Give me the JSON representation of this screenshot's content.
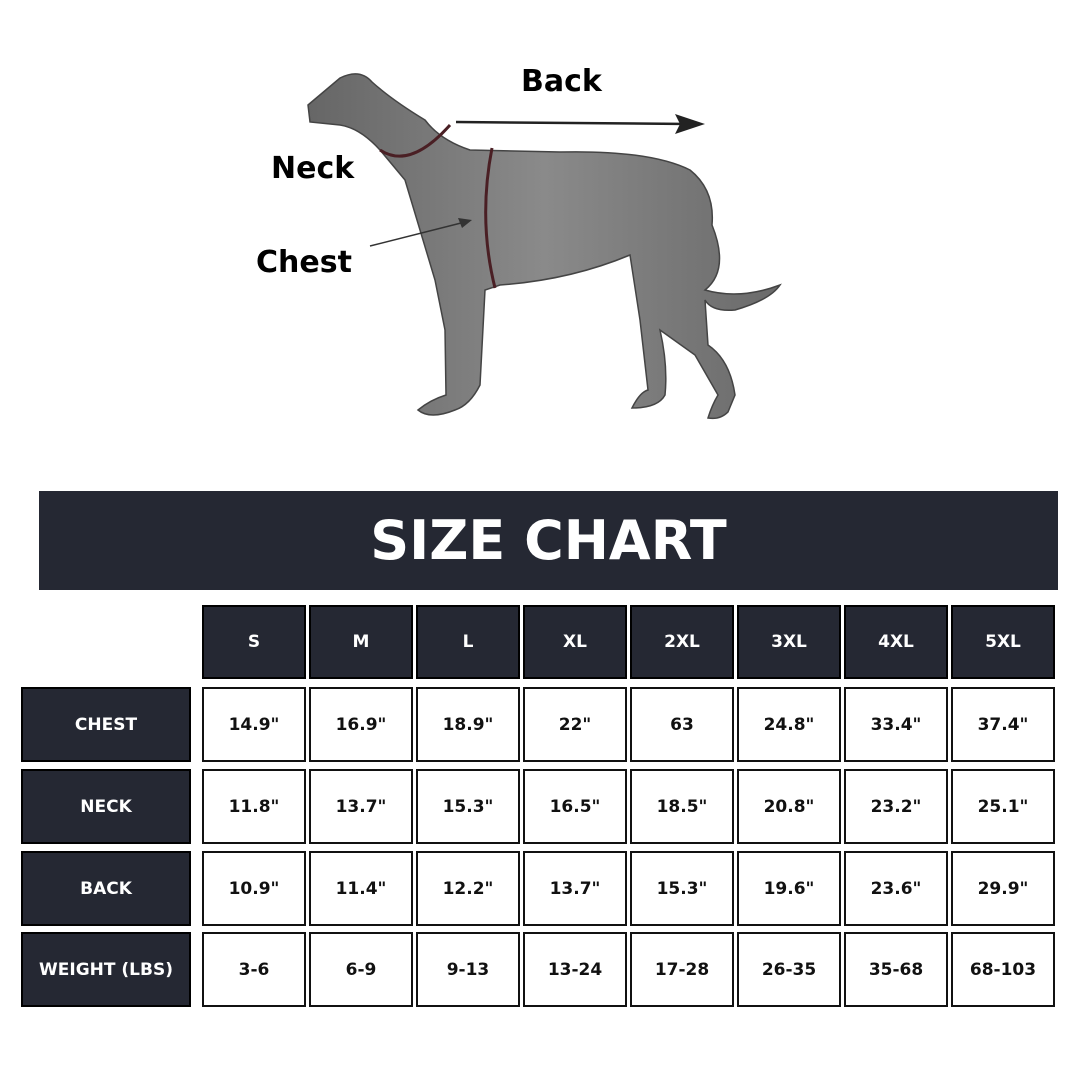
{
  "diagram": {
    "labels": {
      "back": "Back",
      "neck": "Neck",
      "chest": "Chest"
    }
  },
  "title": "SIZE CHART",
  "colors": {
    "header": "#252833",
    "dog": "#7a7a7a",
    "measure_line": "#4a1f24"
  },
  "table": {
    "columns": [
      "S",
      "M",
      "L",
      "XL",
      "2XL",
      "3XL",
      "4XL",
      "5XL"
    ],
    "rows": [
      {
        "label": "CHEST",
        "values": [
          "14.9\"",
          "16.9\"",
          "18.9\"",
          "22\"",
          "63",
          "24.8\"",
          "33.4\"",
          "37.4\""
        ]
      },
      {
        "label": "NECK",
        "values": [
          "11.8\"",
          "13.7\"",
          "15.3\"",
          "16.5\"",
          "18.5\"",
          "20.8\"",
          "23.2\"",
          "25.1\""
        ]
      },
      {
        "label": "BACK",
        "values": [
          "10.9\"",
          "11.4\"",
          "12.2\"",
          "13.7\"",
          "15.3\"",
          "19.6\"",
          "23.6\"",
          "29.9\""
        ]
      },
      {
        "label": "WEIGHT (LBS)",
        "values": [
          "3-6",
          "6-9",
          "9-13",
          "13-24",
          "17-28",
          "26-35",
          "35-68",
          "68-103"
        ]
      }
    ]
  }
}
